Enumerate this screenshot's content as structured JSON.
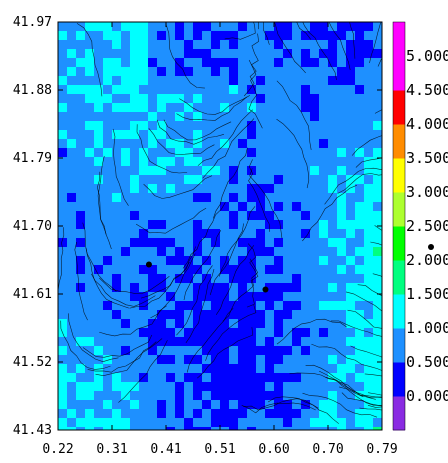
{
  "chart_data": {
    "type": "heatmap",
    "title": "",
    "xlabel": "",
    "ylabel": "",
    "xlim": [
      0.22,
      0.79
    ],
    "ylim": [
      41.43,
      41.97
    ],
    "x_tick_labels": [
      "0.22",
      "0.31",
      "0.41",
      "0.51",
      "0.60",
      "0.70",
      "0.79"
    ],
    "y_tick_labels": [
      "41.97",
      "41.88",
      "41.79",
      "41.70",
      "41.61",
      "41.52",
      "41.43"
    ],
    "colorbar": {
      "labels": [
        "0.000",
        "0.500",
        "1.000",
        "1.500",
        "2.000",
        "2.500",
        "3.000",
        "3.500",
        "4.000",
        "4.500",
        "5.000"
      ],
      "colors": [
        "#8a2be2",
        "#0000ff",
        "#1e90ff",
        "#00ffff",
        "#00ff7f",
        "#00ff00",
        "#adff2f",
        "#ffff00",
        "#ff8c00",
        "#ff0000",
        "#ff00ff",
        "#ff00ff"
      ]
    },
    "overlay": "streamlines",
    "markers": [
      {
        "x": 0.38,
        "y": 41.649
      },
      {
        "x": 0.585,
        "y": 41.616
      }
    ]
  }
}
